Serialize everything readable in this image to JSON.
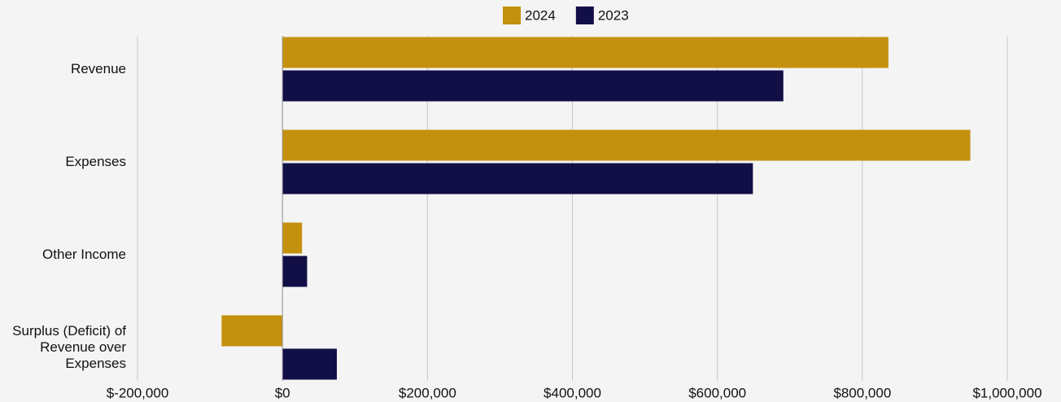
{
  "chart_data": {
    "type": "hbar",
    "categories": [
      "Revenue",
      "Expenses",
      "Other Income",
      "Surplus (Deficit) of Revenue over Expenses"
    ],
    "series": [
      {
        "name": "2024",
        "color": "#c4910f",
        "values": [
          836000,
          949000,
          27000,
          -84000
        ]
      },
      {
        "name": "2023",
        "color": "#120e46",
        "values": [
          691000,
          649000,
          34000,
          75000
        ]
      }
    ],
    "xlim": [
      -200000,
      1000000
    ],
    "xticks": [
      {
        "value": -200000,
        "label": "$-200,000"
      },
      {
        "value": 0,
        "label": "$0"
      },
      {
        "value": 200000,
        "label": "$200,000"
      },
      {
        "value": 400000,
        "label": "$400,000"
      },
      {
        "value": 600000,
        "label": "$600,000"
      },
      {
        "value": 800000,
        "label": "$800,000"
      },
      {
        "value": 1000000,
        "label": "$1,000,000"
      }
    ],
    "grid": true,
    "legend": "top"
  }
}
